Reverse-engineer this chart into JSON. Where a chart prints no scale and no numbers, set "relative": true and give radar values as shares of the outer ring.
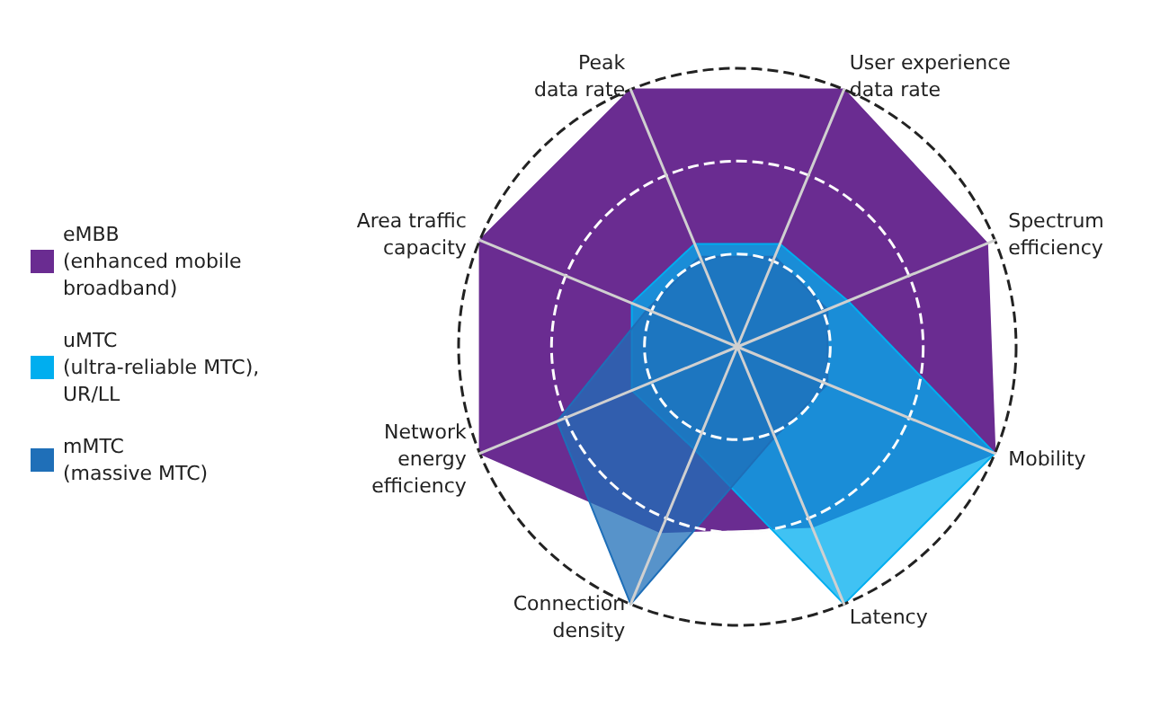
{
  "chart_data": {
    "type": "radar",
    "relative": true,
    "categories": [
      "Peak\ndata rate",
      "User experience\ndata rate",
      "Spectrum\nefficiency",
      "Mobility",
      "Latency",
      "Connection\ndensity",
      "Network\nenergy\nefficiency",
      "Area traffic\ncapacity"
    ],
    "series": [
      {
        "name": "eMBB\n(enhanced mobile\nbroadband)",
        "color": "#6a2c91",
        "values": [
          1,
          1,
          0.97,
          1,
          0.7,
          0.72,
          1,
          1
        ]
      },
      {
        "name": "uMTC\n(ultra-reliable MTC),\nUR/LL",
        "color": "#00aeef",
        "values": [
          0.4,
          0.4,
          0.43,
          1,
          1,
          0.4,
          0.41,
          0.41
        ]
      },
      {
        "name": "mMTC\n(massive MTC)",
        "color": "#1f6fb8",
        "values": [
          0.35,
          0.35,
          0.35,
          0.35,
          0.35,
          1,
          0.7,
          0.35
        ]
      }
    ],
    "legend": "left"
  }
}
